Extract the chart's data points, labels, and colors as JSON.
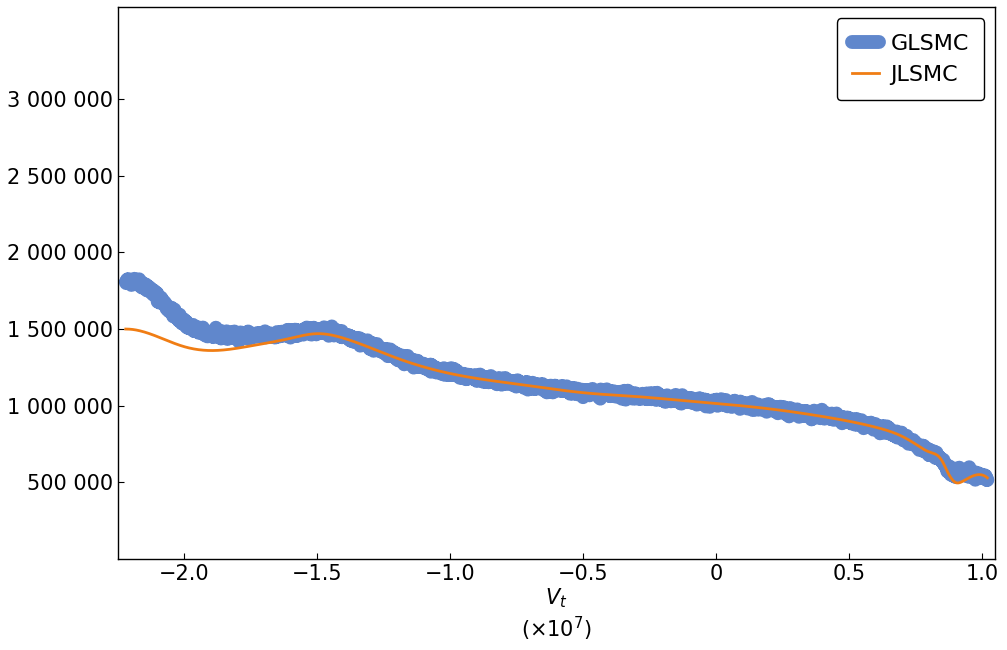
{
  "title": "",
  "xlabel_text": "$V_t$",
  "xlabel_scale": "($\\times 10^7$)",
  "ylabel": "",
  "xlim": [
    -2.25,
    1.05
  ],
  "ylim": [
    0,
    3600000
  ],
  "yticks": [
    500000,
    1000000,
    1500000,
    2000000,
    2500000,
    3000000
  ],
  "ytick_labels": [
    "500 000",
    "1 000 000",
    "1 500 000",
    "2 000 000",
    "2 500 000",
    "3 000 000"
  ],
  "xticks": [
    -2.0,
    -1.5,
    -1.0,
    -0.5,
    0.0,
    0.5,
    1.0
  ],
  "xtick_labels": [
    "−2.0",
    "−1.5",
    "−1.0",
    "−0.5",
    "0",
    "0.5",
    "1.0"
  ],
  "glsmc_color": "#4472c4",
  "jlsmc_color": "#f07d14",
  "legend_loc": "upper right",
  "glsmc_label": "GLSMC",
  "jlsmc_label": "JLSMC",
  "glsmc_linewidth": 10,
  "jlsmc_linewidth": 2.0,
  "figsize": [
    10.07,
    6.5
  ],
  "dpi": 100
}
